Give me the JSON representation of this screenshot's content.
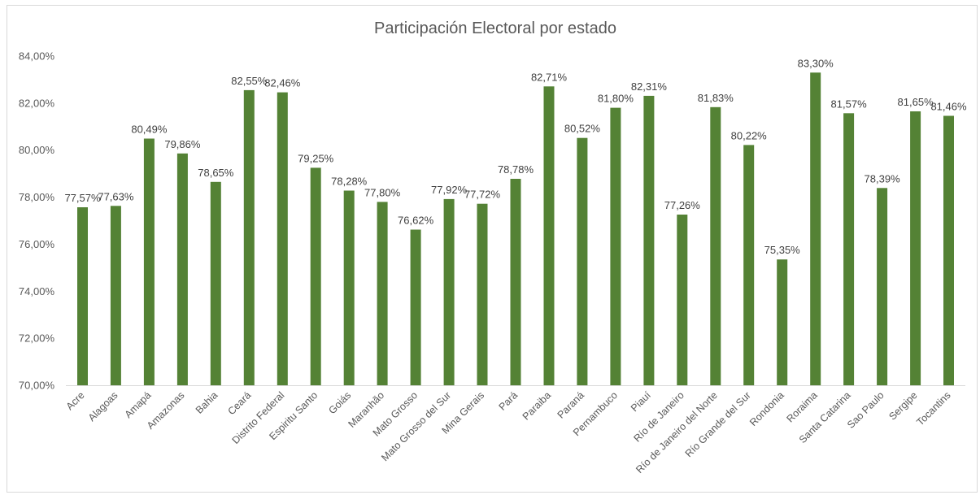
{
  "chart_data": {
    "type": "bar",
    "title": "Participación Electoral por estado",
    "xlabel": "",
    "ylabel": "",
    "ylim": [
      70,
      84
    ],
    "yticks": [
      70,
      72,
      74,
      76,
      78,
      80,
      82,
      84
    ],
    "ytick_labels": [
      "70,00%",
      "72,00%",
      "74,00%",
      "76,00%",
      "78,00%",
      "80,00%",
      "82,00%",
      "84,00%"
    ],
    "grid": false,
    "legend": "none",
    "bar_color": "#548235",
    "categories": [
      "Acre",
      "Alagoas",
      "Amapá",
      "Amazonas",
      "Bahia",
      "Ceará",
      "Distrito Federal",
      "Espiritu Santo",
      "Goiás",
      "Maranhão",
      "Mato Grosso",
      "Mato Grosso del Sur",
      "Mina Gerais",
      "Pará",
      "Paraiba",
      "Paraná",
      "Pernambuco",
      "Piauí",
      "Río de Janeiro",
      "Río de Janeiro del Norte",
      "Río Grande del Sur",
      "Rondonia",
      "Roraima",
      "Santa Catarina",
      "Sao Paulo",
      "Sergipe",
      "Tocantins"
    ],
    "values": [
      77.57,
      77.63,
      80.49,
      79.86,
      78.65,
      82.55,
      82.46,
      79.25,
      78.28,
      77.8,
      76.62,
      77.92,
      77.72,
      78.78,
      82.71,
      80.52,
      81.8,
      82.31,
      77.26,
      81.83,
      80.22,
      75.35,
      83.3,
      81.57,
      78.39,
      81.65,
      81.46
    ],
    "data_labels": [
      "77,57%",
      "77,63%",
      "80,49%",
      "79,86%",
      "78,65%",
      "82,55%",
      "82,46%",
      "79,25%",
      "78,28%",
      "77,80%",
      "76,62%",
      "77,92%",
      "77,72%",
      "78,78%",
      "82,71%",
      "80,52%",
      "81,80%",
      "82,31%",
      "77,26%",
      "81,83%",
      "80,22%",
      "75,35%",
      "83,30%",
      "81,57%",
      "78,39%",
      "81,65%",
      "81,46%"
    ]
  }
}
